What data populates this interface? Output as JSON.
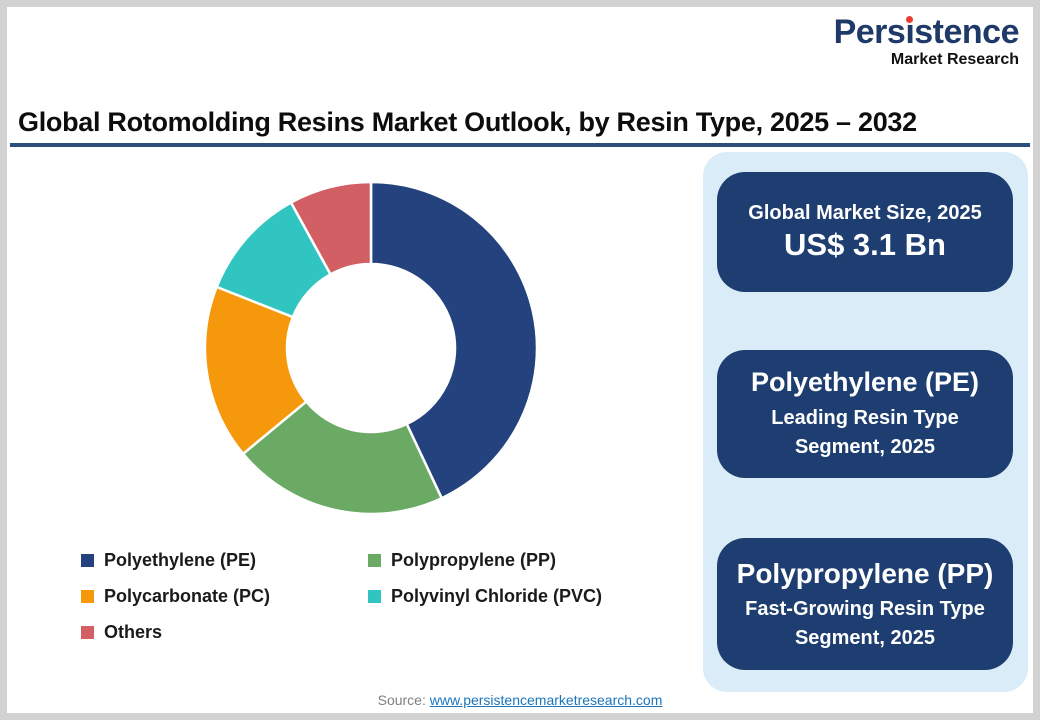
{
  "logo": {
    "name": "Persistence",
    "tagline": "Market Research",
    "brand_color": "#1F3968",
    "accent_color": "#EE3B33"
  },
  "header": {
    "title": "Global Rotomolding Resins Market Outlook, by Resin Type, 2025 – 2032",
    "rule_color": "#2E4D7B"
  },
  "chart_data": {
    "type": "pie",
    "subtype": "donut",
    "title": "Global Rotomolding Resins Market Outlook, by Resin Type, 2025 – 2032",
    "categories": [
      "Polyethylene (PE)",
      "Polypropylene (PP)",
      "Polycarbonate (PC)",
      "Polyvinyl Chloride (PVC)",
      "Others"
    ],
    "values_pct_estimated": [
      43,
      21,
      17,
      11,
      8
    ],
    "colors": [
      "#24437E",
      "#6AAA64",
      "#F5980B",
      "#30C5C0",
      "#D15F63"
    ],
    "start_angle_deg": 0,
    "direction": "clockwise",
    "inner_radius_ratio": 0.5,
    "data_labels": "none",
    "legend_position": "bottom"
  },
  "legend": {
    "items": [
      {
        "label": "Polyethylene (PE)"
      },
      {
        "label": "Polypropylene (PP)"
      },
      {
        "label": "Polycarbonate (PC)"
      },
      {
        "label": "Polyvinyl Chloride (PVC)"
      },
      {
        "label": "Others"
      }
    ]
  },
  "panel": {
    "background_color": "#D9ECF8",
    "box_color": "#1E3E71",
    "boxes": [
      {
        "label": "Global Market Size, 2025",
        "value": "US$ 3.1 Bn"
      },
      {
        "title": "Polyethylene (PE)",
        "sub1": "Leading Resin Type",
        "sub2": "Segment, 2025"
      },
      {
        "title": "Polypropylene (PP)",
        "sub1": "Fast-Growing Resin Type",
        "sub2": "Segment, 2025"
      }
    ]
  },
  "footer": {
    "source_label": "Source:",
    "source_link": "www.persistencemarketresearch.com"
  }
}
